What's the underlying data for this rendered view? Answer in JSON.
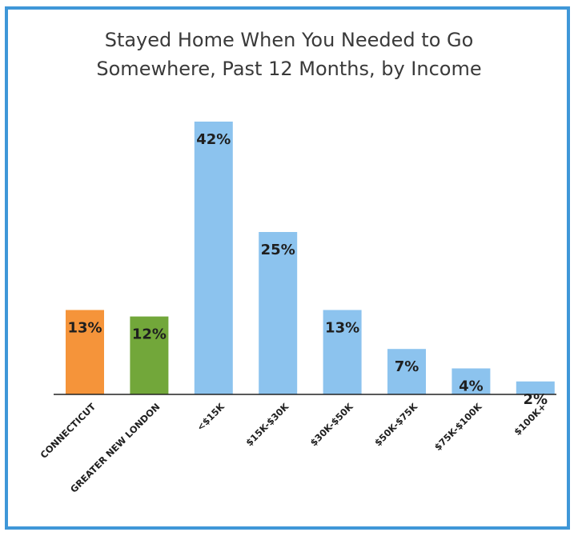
{
  "chart_data": {
    "type": "bar",
    "title_lines": [
      "Stayed Home When You Needed to Go",
      "Somewhere, Past 12 Months, by Income"
    ],
    "categories": [
      "CONNECTICUT",
      "GREATER NEW LONDON",
      "<$15K",
      "$15K-$30K",
      "$30K-$50K",
      "$50K-$75K",
      "$75K-$100K",
      "$100K+"
    ],
    "values": [
      13,
      12,
      42,
      25,
      13,
      7,
      4,
      2
    ],
    "value_labels": [
      "13%",
      "12%",
      "42%",
      "25%",
      "13%",
      "7%",
      "4%",
      "2%"
    ],
    "bar_colors": [
      "#f5943a",
      "#72a73a",
      "#8cc3ee",
      "#8cc3ee",
      "#8cc3ee",
      "#8cc3ee",
      "#8cc3ee",
      "#8cc3ee"
    ],
    "ylim": [
      0,
      42
    ],
    "grid": false,
    "legend": "none"
  },
  "colors": {
    "border": "#3f97d8",
    "axis": "#222222"
  }
}
